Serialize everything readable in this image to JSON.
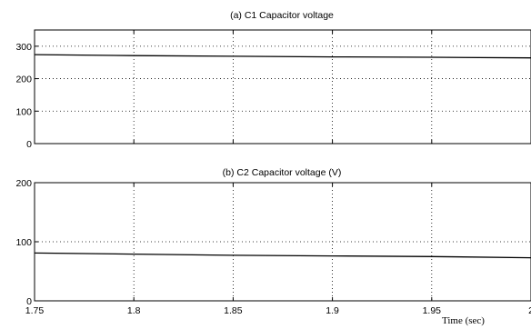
{
  "chart_data": [
    {
      "type": "line",
      "title": "(a) C1 Capacitor voltage",
      "xlabel": "",
      "ylabel": "",
      "xlim": [
        1.75,
        2.0
      ],
      "ylim": [
        0,
        350
      ],
      "xticks": [
        1.75,
        1.8,
        1.85,
        1.9,
        1.95,
        2.0
      ],
      "xtick_labels": [],
      "yticks": [
        0,
        100,
        200,
        300
      ],
      "ytick_labels": [
        "0",
        "100",
        "200",
        "300"
      ],
      "grid": true,
      "series": [
        {
          "x": [
            1.75,
            1.8,
            1.85,
            1.9,
            1.95,
            2.0
          ],
          "values": [
            274,
            271,
            269,
            267,
            266,
            264
          ]
        }
      ]
    },
    {
      "type": "line",
      "title": "(b) C2 Capacitor voltage (V)",
      "xlabel": "Time (sec)",
      "ylabel": "",
      "xlim": [
        1.75,
        2.0
      ],
      "ylim": [
        0,
        200
      ],
      "xticks": [
        1.75,
        1.8,
        1.85,
        1.9,
        1.95,
        2.0
      ],
      "xtick_labels": [
        "1.75",
        "1.8",
        "1.85",
        "1.9",
        "1.95",
        "2"
      ],
      "yticks": [
        0,
        100,
        200
      ],
      "ytick_labels": [
        "0",
        "100",
        "200"
      ],
      "grid": true,
      "series": [
        {
          "x": [
            1.75,
            1.8,
            1.85,
            1.9,
            1.95,
            2.0
          ],
          "values": [
            81,
            79,
            77,
            76,
            75,
            73
          ]
        }
      ]
    }
  ]
}
